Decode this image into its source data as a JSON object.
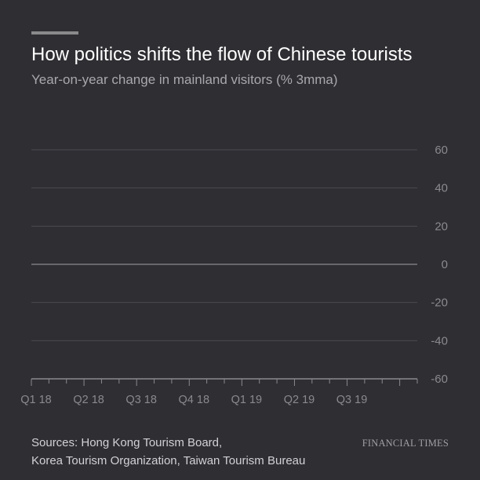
{
  "header": {
    "title": "How politics shifts the flow of Chinese tourists",
    "subtitle": "Year-on-year change in mainland visitors (% 3mma)"
  },
  "footer": {
    "sources_line1": "Sources: Hong Kong Tourism Board,",
    "sources_line2": "Korea Tourism Organization, Taiwan Tourism Bureau",
    "brand": "FINANCIAL TIMES"
  },
  "colors": {
    "background": "#2e2e33",
    "gridline": "#4a4a50",
    "zero_line": "#8a8a8e",
    "axis": "#8a8a8e",
    "tick_label": "#8a8a8e"
  },
  "chart_data": {
    "type": "line",
    "title": "How politics shifts the flow of Chinese tourists",
    "subtitle": "Year-on-year change in mainland visitors (% 3mma)",
    "xlabel": "",
    "ylabel": "",
    "x_categories": [
      "Q1 18",
      "Q2 18",
      "Q3 18",
      "Q4 18",
      "Q1 19",
      "Q2 19",
      "Q3 19"
    ],
    "y_ticks": [
      60,
      40,
      20,
      0,
      -20,
      -40,
      -60
    ],
    "ylim": [
      -60,
      60
    ],
    "y_axis_side": "right",
    "grid": true,
    "series": []
  }
}
